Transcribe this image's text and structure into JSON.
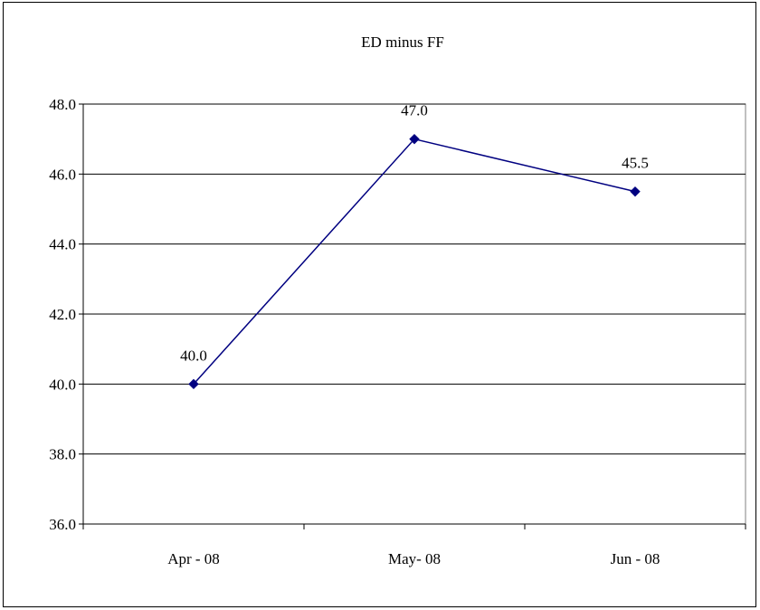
{
  "chart_data": {
    "type": "line",
    "title": "ED minus FF",
    "xlabel": "",
    "ylabel": "",
    "categories": [
      "Apr - 08",
      "May- 08",
      "Jun - 08"
    ],
    "series": [
      {
        "values": [
          40.0,
          47.0,
          45.5
        ],
        "data_labels": [
          "40.0",
          "47.0",
          "45.5"
        ],
        "color": "#000080",
        "marker": "diamond"
      }
    ],
    "ylim": [
      36.0,
      48.0
    ],
    "yticks": [
      36.0,
      38.0,
      40.0,
      42.0,
      44.0,
      46.0,
      48.0
    ],
    "ytick_labels": [
      "36.0",
      "38.0",
      "40.0",
      "42.0",
      "44.0",
      "46.0",
      "48.0"
    ],
    "grid": true,
    "legend": "none",
    "colors": {
      "line": "#000080",
      "grid": "#000000",
      "plot_border": "#808080"
    }
  }
}
